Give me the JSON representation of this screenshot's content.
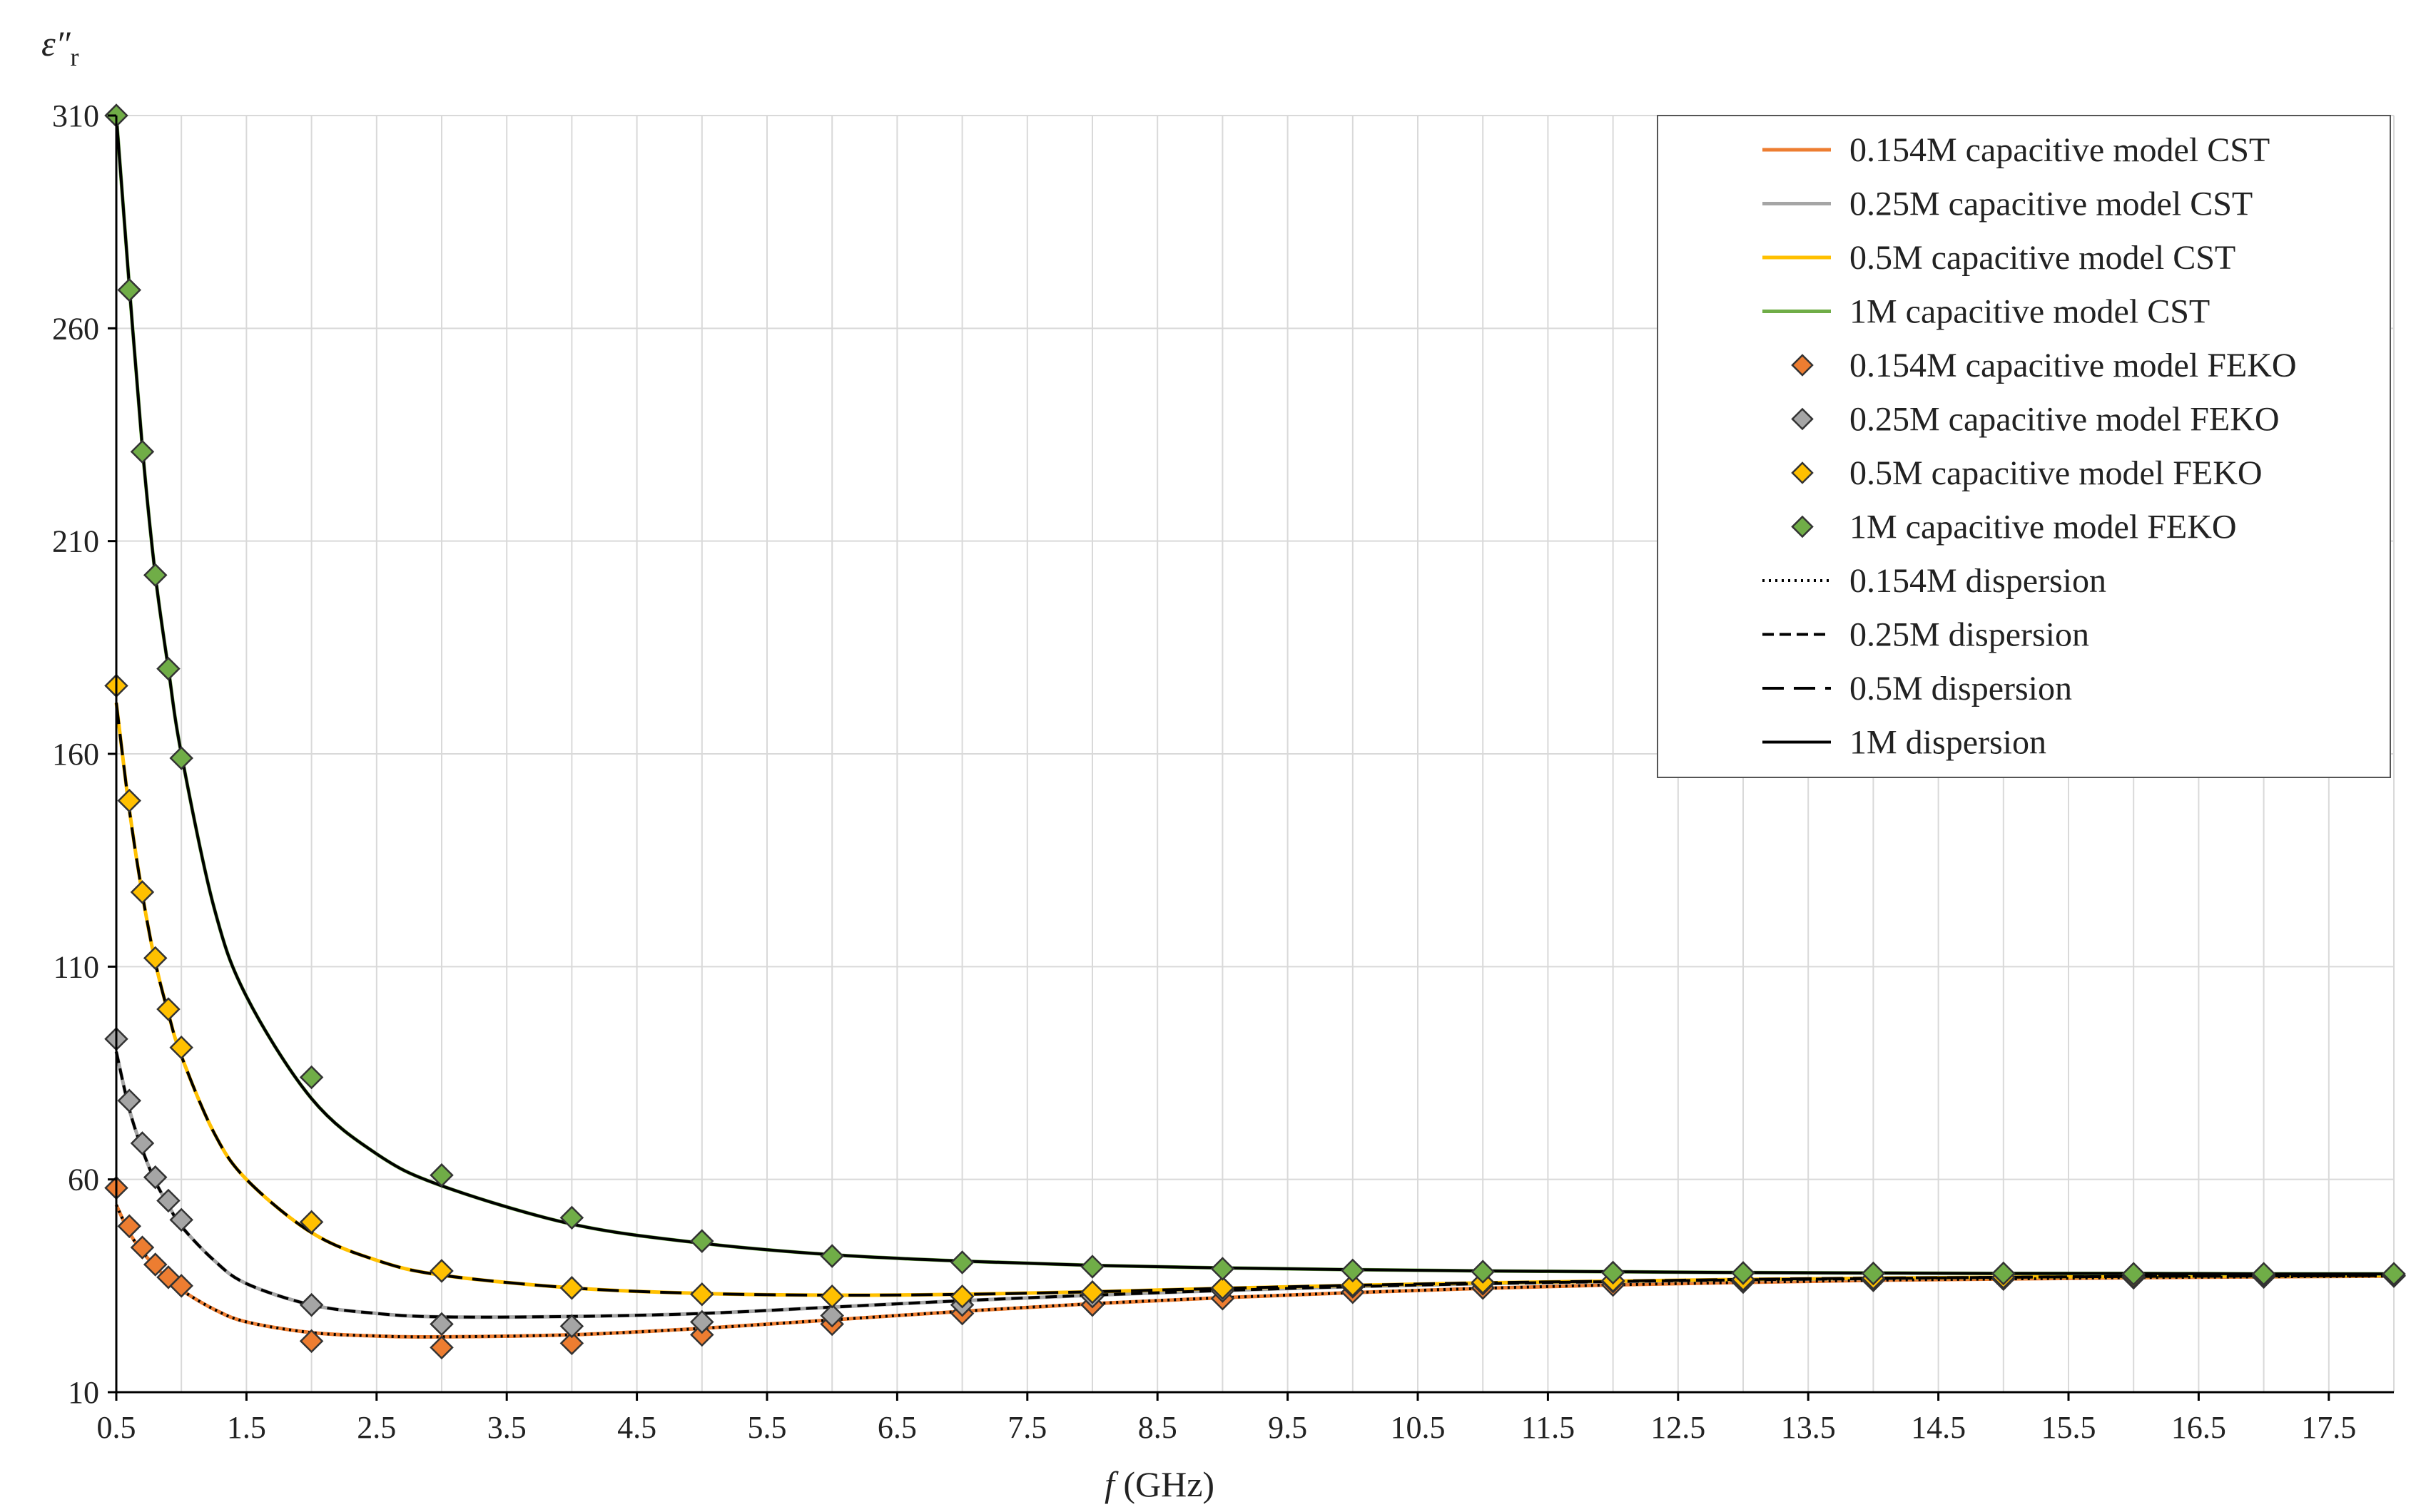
{
  "chart_data": {
    "type": "line",
    "title": "",
    "ylabel": "ε″r",
    "ylabel_main": "ε″",
    "ylabel_sub": "r",
    "xlabel_var": "f",
    "xlabel_unit": " (GHz)",
    "xlim": [
      0.5,
      18
    ],
    "ylim": [
      10,
      310
    ],
    "x_ticks": [
      0.5,
      1.5,
      2.5,
      3.5,
      4.5,
      5.5,
      6.5,
      7.5,
      8.5,
      9.5,
      10.5,
      11.5,
      12.5,
      13.5,
      14.5,
      15.5,
      16.5,
      17.5
    ],
    "x_tick_labels": [
      "0.5",
      "1.5",
      "2.5",
      "3.5",
      "4.5",
      "5.5",
      "6.5",
      "7.5",
      "8.5",
      "9.5",
      "10.5",
      "11.5",
      "12.5",
      "13.5",
      "14.5",
      "15.5",
      "16.5",
      "17.5"
    ],
    "y_ticks": [
      10,
      60,
      110,
      160,
      210,
      260,
      310
    ],
    "y_tick_labels": [
      "10",
      "60",
      "110",
      "160",
      "210",
      "260",
      "310"
    ],
    "grid": true,
    "legend_position": "top-right",
    "line_x": [
      0.5,
      0.6,
      0.7,
      0.8,
      0.9,
      1.0,
      1.25,
      1.5,
      2.0,
      2.5,
      3.0,
      4.0,
      5.0,
      6.0,
      7.0,
      8.0,
      9.0,
      10.0,
      11.0,
      12.0,
      13.0,
      14.0,
      15.0,
      16.0,
      17.0,
      18.0
    ],
    "marker_x": [
      0.5,
      0.6,
      0.7,
      0.8,
      0.9,
      1.0,
      2,
      3,
      4,
      5,
      6,
      7,
      8,
      9,
      10,
      11,
      12,
      13,
      14,
      15,
      16,
      17,
      18
    ],
    "series": [
      {
        "name": "0.154M capacitive model CST",
        "kind": "line",
        "color": "#ed7d31",
        "dash": "",
        "values": [
          54,
          47.5,
          43,
          39.5,
          36.5,
          34,
          29.5,
          26.5,
          24,
          23.2,
          23,
          23.5,
          25,
          27,
          29,
          30.8,
          32.2,
          33.4,
          34.4,
          35.2,
          35.8,
          36.3,
          36.6,
          36.9,
          37.1,
          37.3
        ]
      },
      {
        "name": "0.25M capacitive model CST",
        "kind": "line",
        "color": "#a5a5a5",
        "dash": "",
        "values": [
          90,
          76.5,
          67,
          59.5,
          54,
          49,
          41,
          35.5,
          30.5,
          28.5,
          27.7,
          27.8,
          28.5,
          30,
          31.5,
          32.8,
          33.9,
          34.8,
          35.5,
          36,
          36.4,
          36.7,
          37,
          37.2,
          37.3,
          37.4
        ]
      },
      {
        "name": "0.5M capacitive model CST",
        "kind": "line",
        "color": "#ffc000",
        "dash": "",
        "values": [
          172,
          147,
          127,
          111,
          99,
          89,
          71,
          60,
          47.5,
          41,
          37.5,
          34.5,
          33.2,
          32.8,
          33,
          33.6,
          34.4,
          35.1,
          35.7,
          36.1,
          36.5,
          36.8,
          37,
          37.2,
          37.3,
          37.4
        ]
      },
      {
        "name": "1M capacitive model CST",
        "kind": "line",
        "color": "#70ad47",
        "dash": "",
        "values": [
          310,
          270,
          232,
          202,
          180,
          160,
          124,
          103,
          79,
          66,
          58.5,
          49.5,
          45,
          42.3,
          40.8,
          39.8,
          39.2,
          38.8,
          38.5,
          38.3,
          38.1,
          38,
          37.9,
          37.9,
          37.8,
          37.8
        ]
      },
      {
        "name": "0.154M capacitive model FEKO",
        "kind": "marker",
        "color": "#ed7d31",
        "values": [
          58,
          49,
          44,
          40,
          37,
          35,
          22,
          20.5,
          21.5,
          23.5,
          26,
          28.5,
          30.5,
          32,
          33.5,
          34.5,
          35.2,
          35.9,
          36.3,
          36.6,
          36.9,
          37.1,
          37.3
        ]
      },
      {
        "name": "0.25M capacitive model FEKO",
        "kind": "marker",
        "color": "#a5a5a5",
        "values": [
          93,
          78.5,
          68.5,
          60.5,
          55,
          50.5,
          30.5,
          26,
          25.5,
          26.5,
          28,
          30.5,
          32.5,
          33.8,
          34.8,
          35.5,
          36,
          36.4,
          36.7,
          37,
          37.2,
          37.3,
          37.4
        ]
      },
      {
        "name": "0.5M capacitive model FEKO",
        "kind": "marker",
        "color": "#ffc000",
        "values": [
          176,
          149,
          127.5,
          112,
          100,
          91,
          50,
          38.5,
          34.5,
          33,
          32.5,
          32.5,
          33.5,
          34.5,
          35.2,
          35.8,
          36.2,
          36.5,
          36.8,
          37,
          37.2,
          37.3,
          37.4
        ]
      },
      {
        "name": "1M capacitive model FEKO",
        "kind": "marker",
        "color": "#70ad47",
        "values": [
          310,
          269,
          231,
          202,
          180,
          159,
          84,
          61,
          51,
          45.5,
          42,
          40.5,
          39.5,
          39,
          38.6,
          38.3,
          38.1,
          38,
          37.9,
          37.9,
          37.8,
          37.8,
          37.8
        ]
      },
      {
        "name": "0.154M dispersion",
        "kind": "line",
        "color": "#000000",
        "dash": "3 6",
        "values": [
          54,
          47.5,
          43,
          39.5,
          36.5,
          34,
          29.5,
          26.5,
          24,
          23.2,
          23,
          23.5,
          25,
          27,
          29,
          30.8,
          32.2,
          33.4,
          34.4,
          35.2,
          35.8,
          36.3,
          36.6,
          36.9,
          37.1,
          37.3
        ]
      },
      {
        "name": "0.25M dispersion",
        "kind": "line",
        "color": "#000000",
        "dash": "16 8",
        "values": [
          90,
          76.5,
          67,
          59.5,
          54,
          49,
          41,
          35.5,
          30.5,
          28.5,
          27.7,
          27.8,
          28.5,
          30,
          31.5,
          32.8,
          33.9,
          34.8,
          35.5,
          36,
          36.4,
          36.7,
          37,
          37.2,
          37.3,
          37.4
        ]
      },
      {
        "name": "0.5M dispersion",
        "kind": "line",
        "color": "#000000",
        "dash": "30 14",
        "values": [
          172,
          147,
          127,
          111,
          99,
          89,
          71,
          60,
          47.5,
          41,
          37.5,
          34.5,
          33.2,
          32.8,
          33,
          33.6,
          34.4,
          35.1,
          35.7,
          36.1,
          36.5,
          36.8,
          37,
          37.2,
          37.3,
          37.4
        ]
      },
      {
        "name": "1M dispersion",
        "kind": "line",
        "color": "#000000",
        "dash": "",
        "values": [
          310,
          270,
          232,
          202,
          180,
          160,
          124,
          103,
          79,
          66,
          58.5,
          49.5,
          45,
          42.3,
          40.8,
          39.8,
          39.2,
          38.8,
          38.5,
          38.3,
          38.1,
          38,
          37.9,
          37.9,
          37.8,
          37.8
        ]
      }
    ]
  }
}
